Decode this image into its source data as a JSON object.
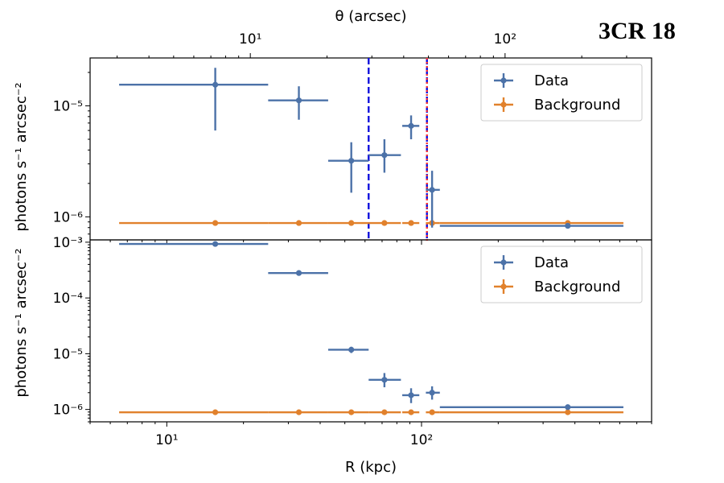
{
  "source_label": "3CR 18",
  "chart_data": {
    "type": "scatter",
    "x_scale": "log",
    "y_scale": "log",
    "xlabel": "R (kpc)",
    "top_xlabel": "θ (arcsec)",
    "ylabel": "photons s⁻¹ arcsec⁻²",
    "xlim": [
      5.0,
      800.0
    ],
    "top_xlim": [
      2.35,
      376.0
    ],
    "x_ticks": [
      {
        "value": 10,
        "label": "10¹"
      },
      {
        "value": 100,
        "label": "10²"
      }
    ],
    "top_x_ticks": [
      {
        "value": 10,
        "label": "10¹"
      },
      {
        "value": 100,
        "label": "10²"
      }
    ],
    "vertical_lines": [
      {
        "x": 62,
        "color": "#1111dd",
        "style": "dashed"
      },
      {
        "x": 105,
        "color": "#1111dd",
        "style": "dashed"
      },
      {
        "x": 105,
        "color": "#ff3333",
        "style": "dotted"
      }
    ],
    "panels": [
      {
        "ylim": [
          6.2e-07,
          2.7e-05
        ],
        "y_ticks": [
          {
            "value": 1e-06,
            "label": "10⁻⁶"
          },
          {
            "value": 1e-05,
            "label": "10⁻⁵"
          }
        ],
        "legend": {
          "position": "top-right",
          "entries": [
            "Data",
            "Background"
          ]
        },
        "series": [
          {
            "name": "Data",
            "color": "#4c72a8",
            "points": [
              {
                "x": 15.5,
                "xlo": 6.5,
                "xhi": 25.0,
                "y": 1.55e-05,
                "ylo": 6e-06,
                "yhi": 2.2e-05
              },
              {
                "x": 33.0,
                "xlo": 25.0,
                "xhi": 43.0,
                "y": 1.12e-05,
                "ylo": 7.5e-06,
                "yhi": 1.5e-05
              },
              {
                "x": 53.0,
                "xlo": 43.0,
                "xhi": 62.0,
                "y": 3.2e-06,
                "ylo": 1.65e-06,
                "yhi": 4.7e-06
              },
              {
                "x": 71.5,
                "xlo": 62.0,
                "xhi": 83.0,
                "y": 3.6e-06,
                "ylo": 2.5e-06,
                "yhi": 5e-06
              },
              {
                "x": 91.0,
                "xlo": 84.0,
                "xhi": 98.0,
                "y": 6.6e-06,
                "ylo": 5e-06,
                "yhi": 8.2e-06
              },
              {
                "x": 110.0,
                "xlo": 104.0,
                "xhi": 118.0,
                "y": 1.75e-06,
                "ylo": 8e-07,
                "yhi": 2.6e-06
              },
              {
                "x": 375.0,
                "xlo": 118.0,
                "xhi": 620.0,
                "y": 8.3e-07,
                "ylo": 8.15e-07,
                "yhi": 8.45e-07
              }
            ]
          },
          {
            "name": "Background",
            "color": "#e1812c",
            "points": [
              {
                "x": 15.5,
                "xlo": 6.5,
                "xhi": 25.0,
                "y": 8.8e-07
              },
              {
                "x": 33.0,
                "xlo": 25.0,
                "xhi": 43.0,
                "y": 8.8e-07
              },
              {
                "x": 53.0,
                "xlo": 43.0,
                "xhi": 62.0,
                "y": 8.8e-07
              },
              {
                "x": 71.5,
                "xlo": 62.0,
                "xhi": 83.0,
                "y": 8.8e-07
              },
              {
                "x": 91.0,
                "xlo": 84.0,
                "xhi": 98.0,
                "y": 8.8e-07
              },
              {
                "x": 110.0,
                "xlo": 104.0,
                "xhi": 118.0,
                "y": 8.8e-07
              },
              {
                "x": 375.0,
                "xlo": 118.0,
                "xhi": 620.0,
                "y": 8.8e-07
              }
            ]
          }
        ]
      },
      {
        "ylim": [
          6e-07,
          0.0011
        ],
        "y_ticks": [
          {
            "value": 1e-06,
            "label": "10⁻⁶"
          },
          {
            "value": 1e-05,
            "label": "10⁻⁵"
          },
          {
            "value": 0.0001,
            "label": "10⁻⁴"
          },
          {
            "value": 0.001,
            "label": "10⁻³"
          }
        ],
        "legend": {
          "position": "top-right",
          "entries": [
            "Data",
            "Background"
          ]
        },
        "series": [
          {
            "name": "Data",
            "color": "#4c72a8",
            "points": [
              {
                "x": 15.5,
                "xlo": 6.5,
                "xhi": 25.0,
                "y": 0.00093,
                "ylo": 0.0009,
                "yhi": 0.00096
              },
              {
                "x": 33.0,
                "xlo": 25.0,
                "xhi": 43.0,
                "y": 0.00028,
                "ylo": 0.00027,
                "yhi": 0.00029
              },
              {
                "x": 53.0,
                "xlo": 43.0,
                "xhi": 62.0,
                "y": 1.18e-05,
                "ylo": 1.03e-05,
                "yhi": 1.33e-05
              },
              {
                "x": 71.5,
                "xlo": 62.0,
                "xhi": 83.0,
                "y": 3.4e-06,
                "ylo": 2.5e-06,
                "yhi": 4.5e-06
              },
              {
                "x": 91.0,
                "xlo": 84.0,
                "xhi": 98.0,
                "y": 1.8e-06,
                "ylo": 1.3e-06,
                "yhi": 2.4e-06
              },
              {
                "x": 110.0,
                "xlo": 104.0,
                "xhi": 118.0,
                "y": 2e-06,
                "ylo": 1.5e-06,
                "yhi": 2.6e-06
              },
              {
                "x": 375.0,
                "xlo": 118.0,
                "xhi": 620.0,
                "y": 1.1e-06,
                "ylo": 1.07e-06,
                "yhi": 1.13e-06
              }
            ]
          },
          {
            "name": "Background",
            "color": "#e1812c",
            "points": [
              {
                "x": 15.5,
                "xlo": 6.5,
                "xhi": 25.0,
                "y": 8.9e-07
              },
              {
                "x": 33.0,
                "xlo": 25.0,
                "xhi": 43.0,
                "y": 8.9e-07
              },
              {
                "x": 53.0,
                "xlo": 43.0,
                "xhi": 62.0,
                "y": 8.9e-07
              },
              {
                "x": 71.5,
                "xlo": 62.0,
                "xhi": 83.0,
                "y": 8.9e-07
              },
              {
                "x": 91.0,
                "xlo": 84.0,
                "xhi": 98.0,
                "y": 8.9e-07
              },
              {
                "x": 110.0,
                "xlo": 104.0,
                "xhi": 118.0,
                "y": 8.9e-07
              },
              {
                "x": 375.0,
                "xlo": 118.0,
                "xhi": 620.0,
                "y": 8.9e-07
              }
            ]
          }
        ]
      }
    ]
  }
}
